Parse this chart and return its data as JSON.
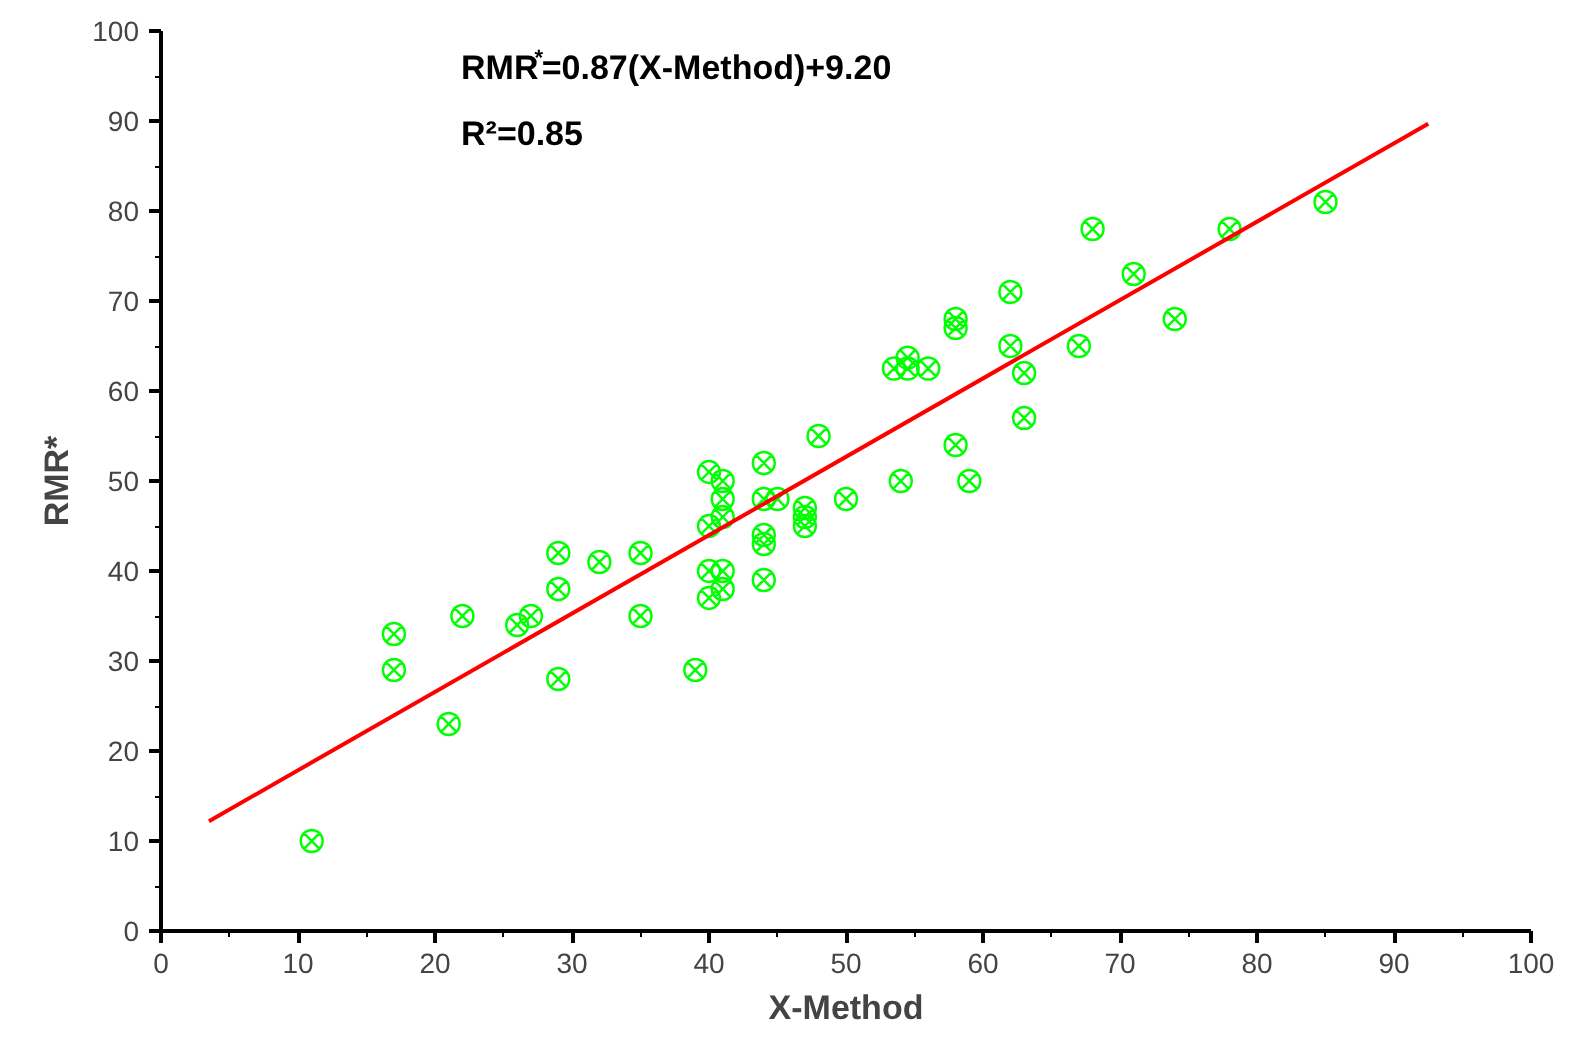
{
  "chart_data": {
    "type": "scatter",
    "xlabel": "X-Method",
    "ylabel": "RMR*",
    "annotations": [
      "RMR$^{*}$=0.87(X-Method)+9.20",
      "R²=0.85"
    ],
    "xlim": [
      0,
      100
    ],
    "ylim": [
      0,
      100
    ],
    "xticks": [
      0,
      10,
      20,
      30,
      40,
      50,
      60,
      70,
      80,
      90,
      100
    ],
    "yticks": [
      0,
      10,
      20,
      30,
      40,
      50,
      60,
      70,
      80,
      90,
      100
    ],
    "grid": false,
    "series": [
      {
        "marker": "cross",
        "color": "#00ff00",
        "x": [
          11,
          17,
          17,
          21,
          22,
          26,
          27,
          29,
          29,
          29,
          32,
          35,
          35,
          39,
          40,
          40,
          40,
          40,
          41,
          41,
          41,
          41,
          41,
          44,
          44,
          44,
          44,
          44,
          45,
          47,
          47,
          47,
          48,
          50,
          53.5,
          54.5,
          54.5,
          56,
          54,
          58,
          58,
          58,
          59,
          62,
          62,
          63,
          63,
          67,
          68,
          71,
          74,
          78,
          85
        ],
        "values": [
          10,
          33,
          29,
          23,
          35,
          34,
          35,
          42,
          38,
          28,
          41,
          42,
          35,
          29,
          51,
          45,
          40,
          37,
          50,
          48,
          46,
          40,
          38,
          52,
          48,
          44,
          43,
          39,
          48,
          47,
          45,
          46,
          55,
          48,
          62.5,
          63.7,
          62.5,
          62.5,
          50,
          68,
          67,
          54,
          50,
          71,
          65,
          62,
          57,
          65,
          78,
          73,
          68,
          78,
          81
        ]
      },
      {
        "type": "line",
        "color": "#ff0000",
        "line_style": "solid",
        "x": [
          3.5,
          92.5
        ],
        "values": [
          12.2,
          89.7
        ]
      }
    ]
  }
}
